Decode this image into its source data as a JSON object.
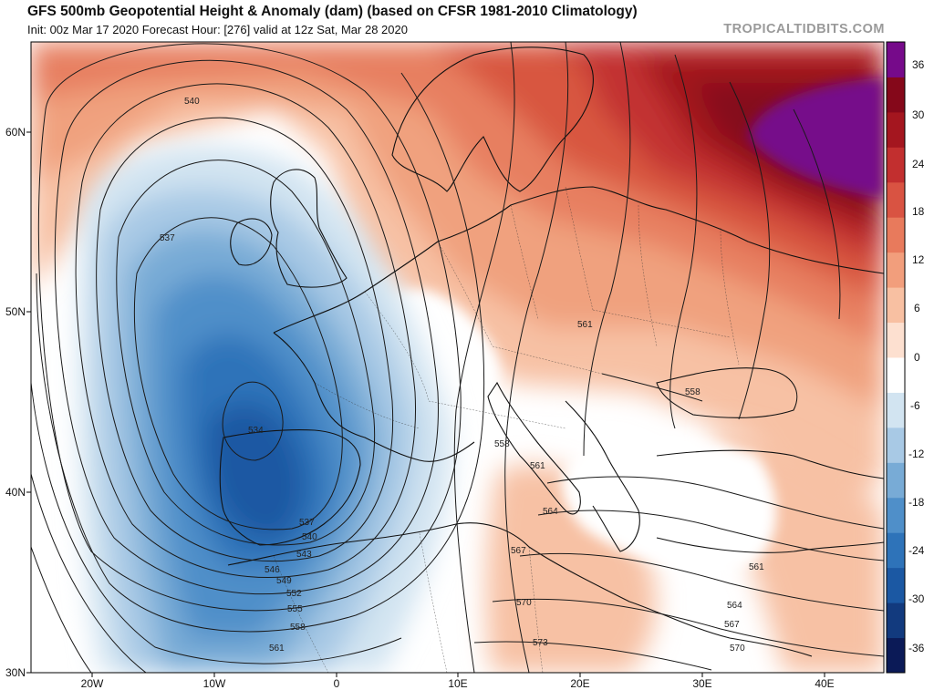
{
  "header": {
    "title": "GFS 500mb Geopotential Height & Anomaly (dam) (based on CFSR 1981-2010 Climatology)",
    "subtitle": "Init: 00z Mar 17 2020   Forecast Hour: [276]   valid at 12z Sat, Mar 28 2020",
    "credit": "TROPICALTIDBITS.COM"
  },
  "map": {
    "lat_labels": [
      "60N",
      "50N",
      "40N",
      "30N"
    ],
    "lon_labels": [
      "20W",
      "10W",
      "0",
      "10E",
      "20E",
      "30E",
      "40E"
    ],
    "contour_labels": [
      "540",
      "537",
      "534",
      "537",
      "540",
      "543",
      "546",
      "549",
      "552",
      "555",
      "558",
      "561",
      "561",
      "558",
      "558",
      "561",
      "564",
      "567",
      "570",
      "573",
      "570",
      "567",
      "564",
      "561"
    ]
  },
  "colorbar": {
    "ticks": [
      "36",
      "30",
      "24",
      "18",
      "12",
      "6",
      "0",
      "-6",
      "-12",
      "-18",
      "-24",
      "-30",
      "-36"
    ],
    "colors": [
      "#0b1a57",
      "#123a7e",
      "#1b58a3",
      "#2e73b9",
      "#4f8fc9",
      "#78abd6",
      "#a8c9e5",
      "#d2e4f1",
      "#ffffff",
      "#fde0d0",
      "#f8c0a2",
      "#f29e7c",
      "#e87a5c",
      "#d95342",
      "#c22f2f",
      "#a4161f",
      "#85081a",
      "#760a8a"
    ],
    "units": "dam"
  }
}
